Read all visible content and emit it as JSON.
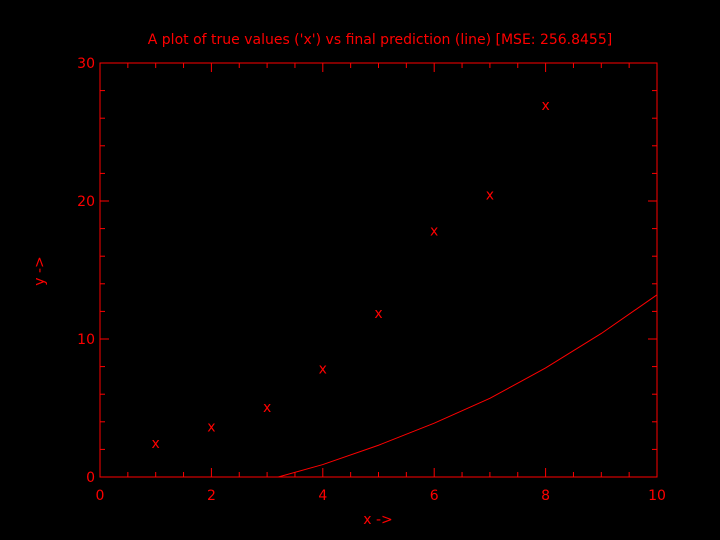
{
  "chart_data": {
    "type": "scatter",
    "title": "A plot of true values ('x') vs final prediction (line) [MSE: 256.8455]",
    "xlabel": "x ->",
    "ylabel": "y ->",
    "xlim": [
      0,
      10
    ],
    "ylim": [
      0,
      30
    ],
    "xticks": [
      0,
      2,
      4,
      6,
      8,
      10
    ],
    "yticks": [
      0,
      10,
      20,
      30
    ],
    "marker": "x",
    "color": "#ff0000",
    "background": "#000000",
    "series": [
      {
        "style": "markers",
        "x": [
          1,
          2,
          3,
          4,
          5,
          6,
          7,
          8
        ],
        "y": [
          2.4,
          3.6,
          5.0,
          7.8,
          11.8,
          17.8,
          20.4,
          26.9
        ]
      },
      {
        "style": "line",
        "x": [
          3.2,
          4,
          5,
          6,
          7,
          8,
          9,
          10
        ],
        "y": [
          0,
          0.9,
          2.3,
          3.9,
          5.7,
          7.9,
          10.4,
          13.2
        ]
      }
    ]
  }
}
